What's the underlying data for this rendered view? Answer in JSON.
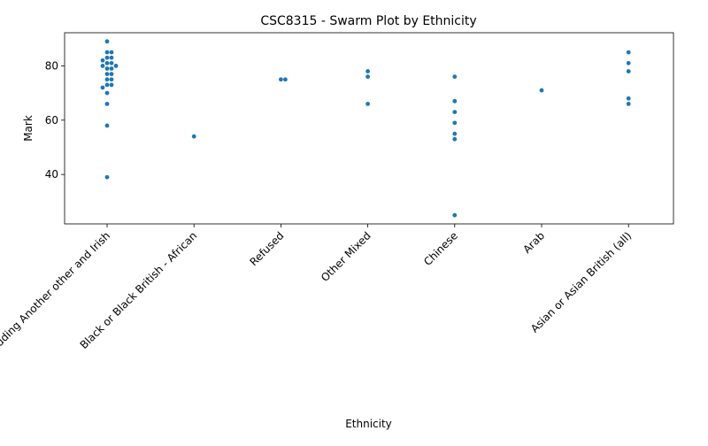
{
  "chart_data": {
    "type": "scatter",
    "subtype": "swarm",
    "title": "CSC8315 - Swarm Plot by Ethnicity",
    "xlabel": "Ethnicity",
    "ylabel": "Mark",
    "categories": [
      "White including Another other and Irish",
      "Black or Black British - African",
      "Refused",
      "Other Mixed",
      "Chinese",
      "Arab",
      "Asian or Asian British (all)"
    ],
    "groups": [
      [
        89,
        85,
        85,
        83,
        83,
        82,
        81,
        81,
        80,
        80,
        79,
        79,
        77,
        77,
        75,
        75,
        73,
        73,
        72,
        70,
        66,
        58,
        39
      ],
      [
        54
      ],
      [
        75,
        75
      ],
      [
        78,
        76,
        66
      ],
      [
        76,
        67,
        63,
        59,
        55,
        53,
        25
      ],
      [
        71
      ],
      [
        85,
        81,
        78,
        68,
        66
      ]
    ],
    "ylim": [
      21.8,
      92.2
    ],
    "yticks": [
      40,
      60,
      80
    ],
    "grid": false,
    "marker_color": "#1f77b4"
  }
}
